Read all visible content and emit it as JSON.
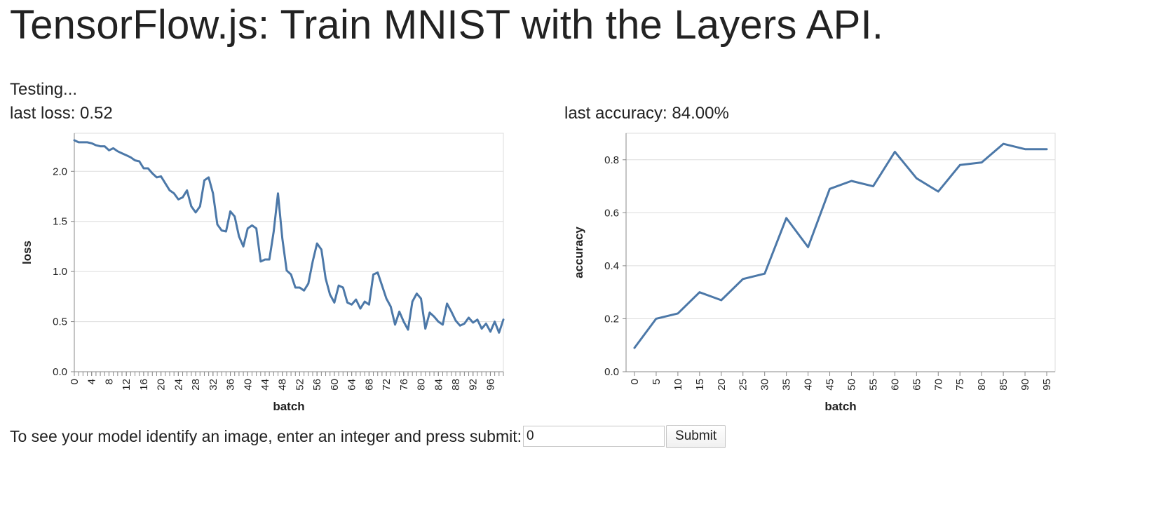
{
  "page": {
    "title": "TensorFlow.js: Train MNIST with the Layers API.",
    "status": "Testing...",
    "last_loss": "last loss: 0.52",
    "last_accuracy": "last accuracy: 84.00%"
  },
  "form": {
    "prompt": "To see your model identify an image, enter an integer and press submit:",
    "input_value": "0",
    "submit_label": "Submit"
  },
  "colors": {
    "line": "#4c78a8",
    "grid": "#dddddd",
    "axis": "#888888",
    "text": "#222222"
  },
  "chart_data": [
    {
      "type": "line",
      "title": "",
      "xlabel": "batch",
      "ylabel": "loss",
      "xlim": [
        0,
        99
      ],
      "ylim": [
        0,
        2.38
      ],
      "x_ticks": [
        0,
        4,
        8,
        12,
        16,
        20,
        24,
        28,
        32,
        36,
        40,
        44,
        48,
        52,
        56,
        60,
        64,
        68,
        72,
        76,
        80,
        84,
        88,
        92,
        96
      ],
      "y_ticks": [
        0.0,
        0.5,
        1.0,
        1.5,
        2.0
      ],
      "y_tick_labels": [
        "0.0",
        "0.5",
        "1.0",
        "1.5",
        "2.0"
      ],
      "grid": true,
      "x_minor_ticks_every": 1,
      "series": [
        {
          "x": [
            0,
            1,
            2,
            3,
            4,
            5,
            6,
            7,
            8,
            9,
            10,
            11,
            12,
            13,
            14,
            15,
            16,
            17,
            18,
            19,
            20,
            21,
            22,
            23,
            24,
            25,
            26,
            27,
            28,
            29,
            30,
            31,
            32,
            33,
            34,
            35,
            36,
            37,
            38,
            39,
            40,
            41,
            42,
            43,
            44,
            45,
            46,
            47,
            48,
            49,
            50,
            51,
            52,
            53,
            54,
            55,
            56,
            57,
            58,
            59,
            60,
            61,
            62,
            63,
            64,
            65,
            66,
            67,
            68,
            69,
            70,
            71,
            72,
            73,
            74,
            75,
            76,
            77,
            78,
            79,
            80,
            81,
            82,
            83,
            84,
            85,
            86,
            87,
            88,
            89,
            90,
            91,
            92,
            93,
            94,
            95,
            96,
            97,
            98,
            99
          ],
          "values": [
            2.31,
            2.29,
            2.29,
            2.29,
            2.28,
            2.26,
            2.25,
            2.25,
            2.21,
            2.23,
            2.2,
            2.18,
            2.16,
            2.14,
            2.11,
            2.1,
            2.03,
            2.03,
            1.98,
            1.94,
            1.95,
            1.88,
            1.81,
            1.78,
            1.72,
            1.74,
            1.81,
            1.65,
            1.59,
            1.65,
            1.91,
            1.94,
            1.78,
            1.47,
            1.41,
            1.4,
            1.6,
            1.55,
            1.35,
            1.25,
            1.43,
            1.46,
            1.43,
            1.1,
            1.12,
            1.12,
            1.4,
            1.78,
            1.33,
            1.01,
            0.97,
            0.84,
            0.84,
            0.81,
            0.88,
            1.1,
            1.28,
            1.22,
            0.93,
            0.77,
            0.69,
            0.86,
            0.84,
            0.69,
            0.67,
            0.72,
            0.63,
            0.7,
            0.67,
            0.97,
            0.99,
            0.86,
            0.73,
            0.65,
            0.47,
            0.6,
            0.5,
            0.42,
            0.7,
            0.78,
            0.73,
            0.43,
            0.59,
            0.55,
            0.5,
            0.47,
            0.68,
            0.6,
            0.51,
            0.46,
            0.48,
            0.54,
            0.49,
            0.52,
            0.43,
            0.48,
            0.4,
            0.5,
            0.39,
            0.52
          ]
        }
      ]
    },
    {
      "type": "line",
      "title": "",
      "xlabel": "batch",
      "ylabel": "accuracy",
      "xlim": [
        0,
        95
      ],
      "ylim": [
        0,
        0.9
      ],
      "x_ticks": [
        0,
        5,
        10,
        15,
        20,
        25,
        30,
        35,
        40,
        45,
        50,
        55,
        60,
        65,
        70,
        75,
        80,
        85,
        90,
        95
      ],
      "y_ticks": [
        0.0,
        0.2,
        0.4,
        0.6,
        0.8
      ],
      "y_tick_labels": [
        "0.0",
        "0.2",
        "0.4",
        "0.6",
        "0.8"
      ],
      "grid": true,
      "x_minor_ticks_every": 0,
      "series": [
        {
          "x": [
            0,
            5,
            10,
            15,
            20,
            25,
            30,
            35,
            40,
            45,
            50,
            55,
            60,
            65,
            70,
            75,
            80,
            85,
            90,
            95
          ],
          "values": [
            0.09,
            0.2,
            0.22,
            0.3,
            0.27,
            0.35,
            0.37,
            0.58,
            0.47,
            0.69,
            0.72,
            0.7,
            0.83,
            0.73,
            0.68,
            0.78,
            0.79,
            0.86,
            0.84,
            0.84
          ]
        }
      ]
    }
  ]
}
